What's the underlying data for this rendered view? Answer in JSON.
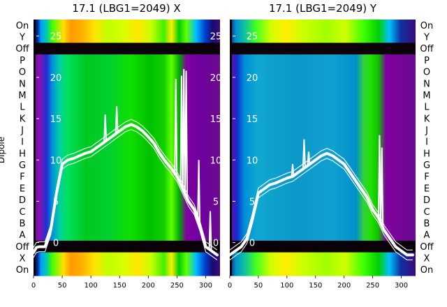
{
  "chart_data": [
    {
      "type": "heatmap",
      "title": "17.1 (LBG1=2049) X",
      "ylabel": "Dipole",
      "row_labels": [
        "On",
        "Y",
        "Off",
        "P",
        "O",
        "N",
        "M",
        "L",
        "K",
        "J",
        "I",
        "H",
        "G",
        "F",
        "E",
        "D",
        "C",
        "B",
        "A",
        "Off",
        "X",
        "On"
      ],
      "x_ticks": [
        0,
        50,
        100,
        150,
        200,
        250,
        300
      ],
      "xlim": [
        0,
        325
      ],
      "overlay_y_ticks": [
        0,
        5,
        10,
        15,
        20,
        25
      ],
      "overlay_ylim": [
        -4,
        27
      ],
      "series": [
        {
          "x": [
            0,
            5,
            10,
            20,
            30,
            40,
            50,
            60,
            70,
            80,
            90,
            100,
            110,
            120,
            130,
            140,
            150,
            160,
            170,
            180,
            190,
            200,
            210,
            220,
            230,
            240,
            250,
            260,
            270,
            280,
            290,
            300,
            310,
            320
          ],
          "values": [
            -1.2,
            -0.6,
            -0.5,
            -0.5,
            1.5,
            6.0,
            9.5,
            10.0,
            10.2,
            10.5,
            10.8,
            11.0,
            11.5,
            12.0,
            12.5,
            13.0,
            13.5,
            14.0,
            14.3,
            14.0,
            13.5,
            12.8,
            12.0,
            10.8,
            9.8,
            9.0,
            8.0,
            6.5,
            5.0,
            4.0,
            2.0,
            -0.5,
            -1.0,
            -1.5
          ]
        }
      ],
      "spikes": [
        {
          "x": 125,
          "value": 15.5
        },
        {
          "x": 145,
          "value": 16.5
        },
        {
          "x": 248,
          "value": 19.8
        },
        {
          "x": 258,
          "value": 20.2
        },
        {
          "x": 262,
          "value": 21.0
        },
        {
          "x": 266,
          "value": 20.8
        },
        {
          "x": 288,
          "value": 10.0
        },
        {
          "x": 308,
          "value": 3.8
        }
      ]
    },
    {
      "type": "heatmap",
      "title": "17.1 (LBG1=2049) Y",
      "row_labels": [
        "On",
        "Y",
        "Off",
        "P",
        "O",
        "N",
        "M",
        "L",
        "K",
        "J",
        "I",
        "H",
        "G",
        "F",
        "E",
        "D",
        "C",
        "B",
        "A",
        "Off",
        "X",
        "On"
      ],
      "x_ticks": [
        0,
        50,
        100,
        150,
        200,
        250,
        300
      ],
      "xlim": [
        0,
        325
      ],
      "overlay_y_ticks": [
        0,
        5,
        10,
        15,
        20,
        25
      ],
      "overlay_ylim": [
        -4,
        27
      ],
      "series": [
        {
          "x": [
            0,
            10,
            20,
            30,
            40,
            50,
            60,
            70,
            80,
            90,
            100,
            110,
            120,
            130,
            140,
            150,
            160,
            170,
            180,
            190,
            200,
            210,
            220,
            230,
            240,
            250,
            260,
            270,
            280,
            290,
            300,
            310,
            320
          ],
          "values": [
            -1.5,
            -1.0,
            -0.5,
            0.5,
            3.0,
            6.0,
            6.5,
            7.0,
            7.2,
            7.5,
            7.8,
            8.0,
            8.5,
            9.0,
            9.5,
            10.0,
            10.5,
            10.8,
            10.5,
            10.0,
            9.5,
            8.5,
            7.5,
            6.5,
            5.5,
            4.0,
            3.0,
            1.5,
            0.5,
            -0.5,
            -1.0,
            -1.5,
            -1.5
          ]
        }
      ],
      "spikes": [
        {
          "x": 110,
          "value": 9.5
        },
        {
          "x": 130,
          "value": 12.5
        },
        {
          "x": 138,
          "value": 11.0
        },
        {
          "x": 262,
          "value": 13.0
        },
        {
          "x": 266,
          "value": 11.5
        }
      ]
    }
  ]
}
